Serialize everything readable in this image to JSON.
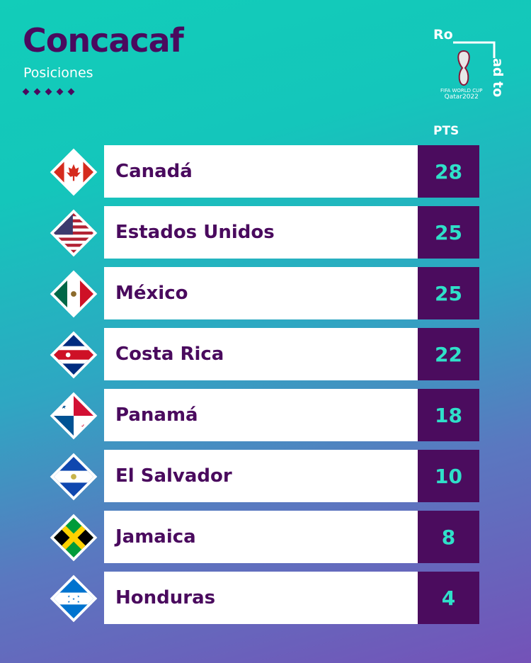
{
  "header": {
    "title": "Concacaf",
    "subtitle": "Posiciones"
  },
  "logo": {
    "line1": "Ro",
    "line2": "ad to",
    "caption1": "FIFA WORLD CUP",
    "caption2": "Qatar2022"
  },
  "column_label": "PTS",
  "colors": {
    "text": "#4a0a5e",
    "points_bg": "#4b0c5e",
    "points_text": "#2fe0c9"
  },
  "standings": [
    {
      "team": "Canadá",
      "points": "28",
      "flag": "canada"
    },
    {
      "team": "Estados Unidos",
      "points": "25",
      "flag": "usa"
    },
    {
      "team": "México",
      "points": "25",
      "flag": "mexico"
    },
    {
      "team": "Costa Rica",
      "points": "22",
      "flag": "costa-rica"
    },
    {
      "team": "Panamá",
      "points": "18",
      "flag": "panama"
    },
    {
      "team": "El Salvador",
      "points": "10",
      "flag": "el-salvador"
    },
    {
      "team": "Jamaica",
      "points": "8",
      "flag": "jamaica"
    },
    {
      "team": "Honduras",
      "points": "4",
      "flag": "honduras"
    }
  ]
}
